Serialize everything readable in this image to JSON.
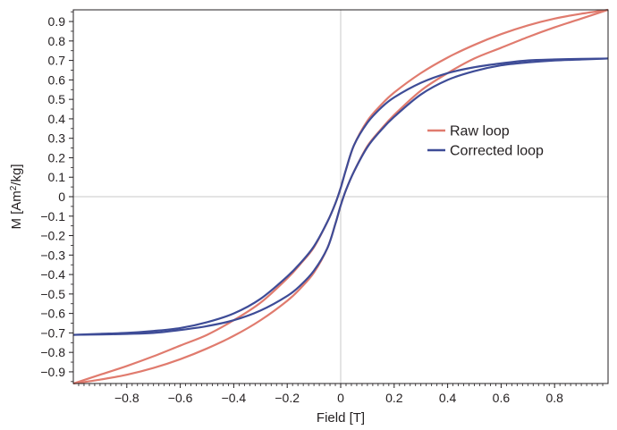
{
  "chart_data": {
    "type": "line",
    "title": "",
    "xlabel": "Field [T]",
    "ylabel_main": "M [Am",
    "ylabel_sup": "2",
    "ylabel_tail": "/kg]",
    "xlim": [
      -1.0,
      1.0
    ],
    "ylim": [
      -0.96,
      0.96
    ],
    "x_ticks": [
      -0.8,
      -0.6,
      -0.4,
      -0.2,
      0,
      0.2,
      0.4,
      0.6,
      0.8
    ],
    "x_tick_labels": [
      "−0.8",
      "−0.6",
      "−0.4",
      "−0.2",
      "0",
      "0.2",
      "0.4",
      "0.6",
      "0.8"
    ],
    "y_ticks": [
      0.9,
      0.8,
      0.7,
      0.6,
      0.5,
      0.4,
      0.3,
      0.2,
      0.1,
      0,
      -0.1,
      -0.2,
      -0.3,
      -0.4,
      -0.5,
      -0.6,
      -0.7,
      -0.8,
      -0.9
    ],
    "y_tick_labels": [
      "0.9",
      "0.8",
      "0.7",
      "0.6",
      "0.5",
      "0.4",
      "0.3",
      "0.2",
      "0.1",
      "0",
      "−0.1",
      "−0.2",
      "−0.3",
      "−0.4",
      "−0.5",
      "−0.6",
      "−0.7",
      "−0.8",
      "−0.9"
    ],
    "grid": false,
    "zero_lines": true,
    "legend_position": "right-center",
    "series": [
      {
        "name": "Raw loop",
        "color": "#e07b6e",
        "x": [
          -1.0,
          -0.9,
          -0.8,
          -0.7,
          -0.6,
          -0.5,
          -0.4,
          -0.3,
          -0.2,
          -0.15,
          -0.1,
          -0.05,
          -0.02,
          0,
          0.02,
          0.05,
          0.1,
          0.15,
          0.2,
          0.3,
          0.4,
          0.5,
          0.6,
          0.7,
          0.8,
          0.9,
          1.0
        ],
        "upper": [
          -0.96,
          -0.915,
          -0.87,
          -0.82,
          -0.765,
          -0.71,
          -0.635,
          -0.545,
          -0.42,
          -0.345,
          -0.26,
          -0.13,
          -0.035,
          0.045,
          0.14,
          0.265,
          0.39,
          0.47,
          0.535,
          0.635,
          0.715,
          0.78,
          0.835,
          0.88,
          0.915,
          0.94,
          0.96
        ],
        "lower": [
          -0.96,
          -0.94,
          -0.915,
          -0.88,
          -0.835,
          -0.78,
          -0.715,
          -0.635,
          -0.535,
          -0.47,
          -0.39,
          -0.265,
          -0.14,
          -0.045,
          0.035,
          0.13,
          0.26,
          0.345,
          0.42,
          0.545,
          0.635,
          0.71,
          0.765,
          0.82,
          0.87,
          0.915,
          0.96
        ]
      },
      {
        "name": "Corrected loop",
        "color": "#3e4c97",
        "x": [
          -1.0,
          -0.9,
          -0.8,
          -0.7,
          -0.6,
          -0.5,
          -0.4,
          -0.3,
          -0.2,
          -0.15,
          -0.1,
          -0.05,
          -0.02,
          0,
          0.02,
          0.05,
          0.1,
          0.15,
          0.2,
          0.3,
          0.4,
          0.5,
          0.6,
          0.7,
          0.8,
          0.9,
          1.0
        ],
        "upper": [
          -0.71,
          -0.705,
          -0.7,
          -0.69,
          -0.675,
          -0.645,
          -0.6,
          -0.525,
          -0.41,
          -0.34,
          -0.255,
          -0.13,
          -0.035,
          0.045,
          0.14,
          0.265,
          0.38,
          0.455,
          0.51,
          0.585,
          0.635,
          0.665,
          0.685,
          0.7,
          0.705,
          0.708,
          0.71
        ],
        "lower": [
          -0.71,
          -0.708,
          -0.705,
          -0.7,
          -0.685,
          -0.665,
          -0.635,
          -0.585,
          -0.51,
          -0.455,
          -0.38,
          -0.265,
          -0.14,
          -0.045,
          0.035,
          0.13,
          0.255,
          0.34,
          0.41,
          0.525,
          0.6,
          0.645,
          0.675,
          0.69,
          0.7,
          0.705,
          0.71
        ]
      }
    ]
  }
}
